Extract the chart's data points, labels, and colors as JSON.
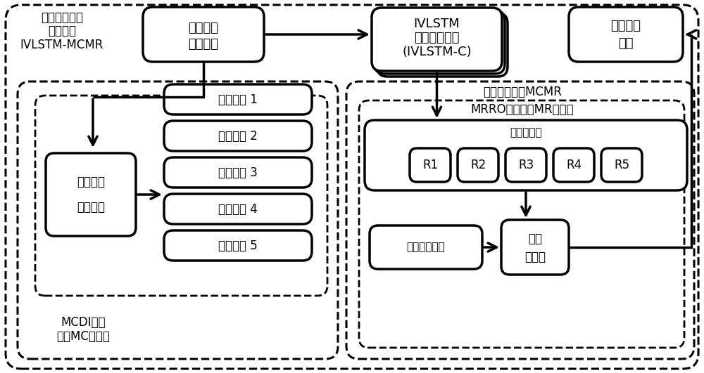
{
  "bg_color": "#ffffff",
  "fig_w": 10.0,
  "fig_h": 5.31,
  "top_label1": [
    "空气质量预测",
    "整体模型",
    "IVLSTM-MCMR"
  ],
  "air_quality_box": [
    "空气质量",
    "总体数据"
  ],
  "ivlstm_box": [
    "IVLSTM",
    "深度学习网络",
    "(IVLSTM-C)"
  ],
  "final_box": [
    "最终预测",
    "结果"
  ],
  "filter_box": [
    "数据筛选",
    "方法部件"
  ],
  "channels": [
    "数据通道 1",
    "数据通道 2",
    "数据通道 3",
    "数据通道 4",
    "数据通道 5"
  ],
  "mcdi_label": [
    "MCDI模型",
    "（用MC指代）"
  ],
  "io_label": "输入输出模块MCMR",
  "mrro_label": "MRRO模型（用MR指代）",
  "initial_label": "初步结果组",
  "r_labels": [
    "R1",
    "R2",
    "R3",
    "R4",
    "R5"
  ],
  "path_label": "路径选择部件",
  "merger_label": [
    "数据",
    "整合器"
  ]
}
